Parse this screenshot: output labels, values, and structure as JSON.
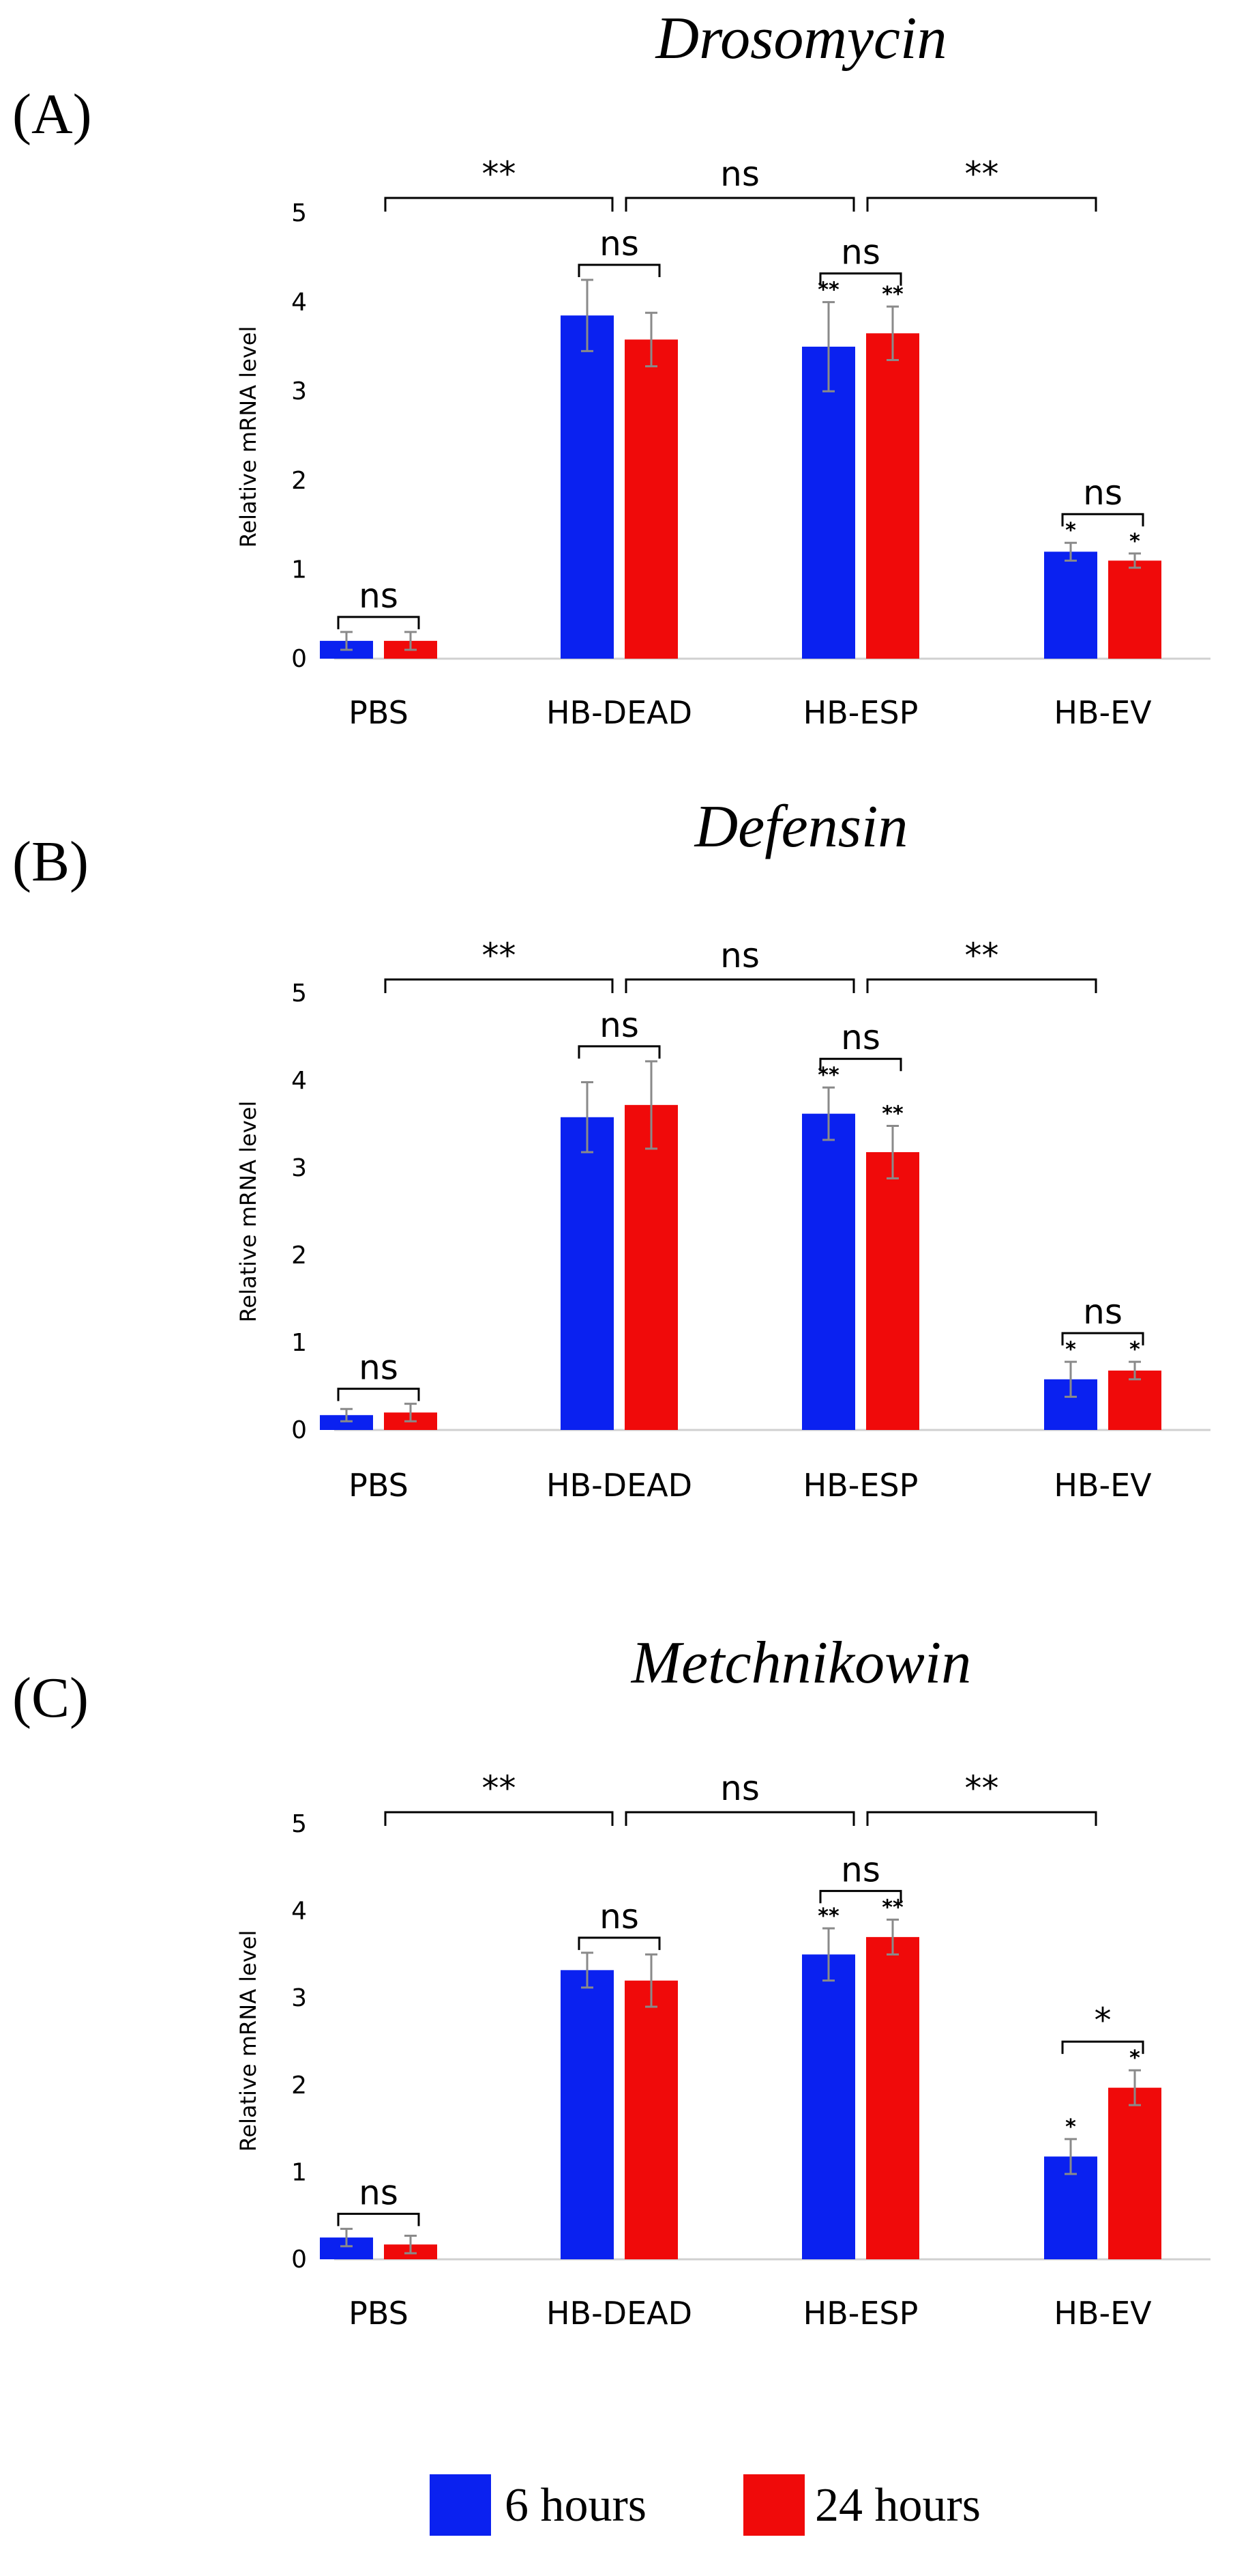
{
  "chart_data": [
    {
      "type": "bar",
      "panel": "(A)",
      "title": "Drosomycin",
      "ylabel": "Relative mRNA level",
      "ylim": [
        0,
        5
      ],
      "yticks": [
        "0",
        "1",
        "2",
        "3",
        "4",
        "5"
      ],
      "categories": [
        "PBS",
        "HB-DEAD",
        "HB-ESP",
        "HB-EV"
      ],
      "series": [
        {
          "name": "6 hours",
          "color": "#0A21F0",
          "values": [
            0.2,
            3.85,
            3.5,
            1.2
          ],
          "errors": [
            0.1,
            0.4,
            0.5,
            0.1
          ],
          "stars": [
            "",
            "",
            "**",
            "*"
          ]
        },
        {
          "name": "24 hours",
          "color": "#F00A0A",
          "values": [
            0.2,
            3.58,
            3.65,
            1.1
          ],
          "errors": [
            0.1,
            0.3,
            0.3,
            0.08
          ],
          "stars": [
            "",
            "",
            "**",
            "*"
          ]
        }
      ],
      "pair_annotations": [
        "ns",
        "ns",
        "ns",
        "ns"
      ],
      "group_annotations": [
        "**",
        "ns",
        "**"
      ]
    },
    {
      "type": "bar",
      "panel": "(B)",
      "title": "Defensin",
      "ylabel": "Relative mRNA level",
      "ylim": [
        0,
        5
      ],
      "yticks": [
        "0",
        "1",
        "2",
        "3",
        "4",
        "5"
      ],
      "categories": [
        "PBS",
        "HB-DEAD",
        "HB-ESP",
        "HB-EV"
      ],
      "series": [
        {
          "name": "6 hours",
          "color": "#0A21F0",
          "values": [
            0.17,
            3.58,
            3.62,
            0.58
          ],
          "errors": [
            0.07,
            0.4,
            0.3,
            0.2
          ],
          "stars": [
            "",
            "",
            "**",
            "*"
          ]
        },
        {
          "name": "24 hours",
          "color": "#F00A0A",
          "values": [
            0.2,
            3.72,
            3.18,
            0.68
          ],
          "errors": [
            0.1,
            0.5,
            0.3,
            0.1
          ],
          "stars": [
            "",
            "",
            "**",
            "*"
          ]
        }
      ],
      "pair_annotations": [
        "ns",
        "ns",
        "ns",
        "ns"
      ],
      "group_annotations": [
        "**",
        "ns",
        "**"
      ]
    },
    {
      "type": "bar",
      "panel": "(C)",
      "title": "Metchnikowin",
      "ylabel": "Relative mRNA level",
      "ylim": [
        0,
        5
      ],
      "yticks": [
        "0",
        "1",
        "2",
        "3",
        "4",
        "5"
      ],
      "categories": [
        "PBS",
        "HB-DEAD",
        "HB-ESP",
        "HB-EV"
      ],
      "series": [
        {
          "name": "6 hours",
          "color": "#0A21F0",
          "values": [
            0.25,
            3.32,
            3.5,
            1.18
          ],
          "errors": [
            0.1,
            0.2,
            0.3,
            0.2
          ],
          "stars": [
            "",
            "",
            "**",
            "*"
          ]
        },
        {
          "name": "24 hours",
          "color": "#F00A0A",
          "values": [
            0.17,
            3.2,
            3.7,
            1.97
          ],
          "errors": [
            0.1,
            0.3,
            0.2,
            0.2
          ],
          "stars": [
            "",
            "",
            "**",
            "*"
          ]
        }
      ],
      "pair_annotations": [
        "ns",
        "ns",
        "ns",
        "*"
      ],
      "group_annotations": [
        "**",
        "ns",
        "**"
      ]
    }
  ],
  "legend": [
    {
      "label": "6 hours",
      "color": "#0A21F0"
    },
    {
      "label": "24 hours",
      "color": "#F00A0A"
    }
  ]
}
